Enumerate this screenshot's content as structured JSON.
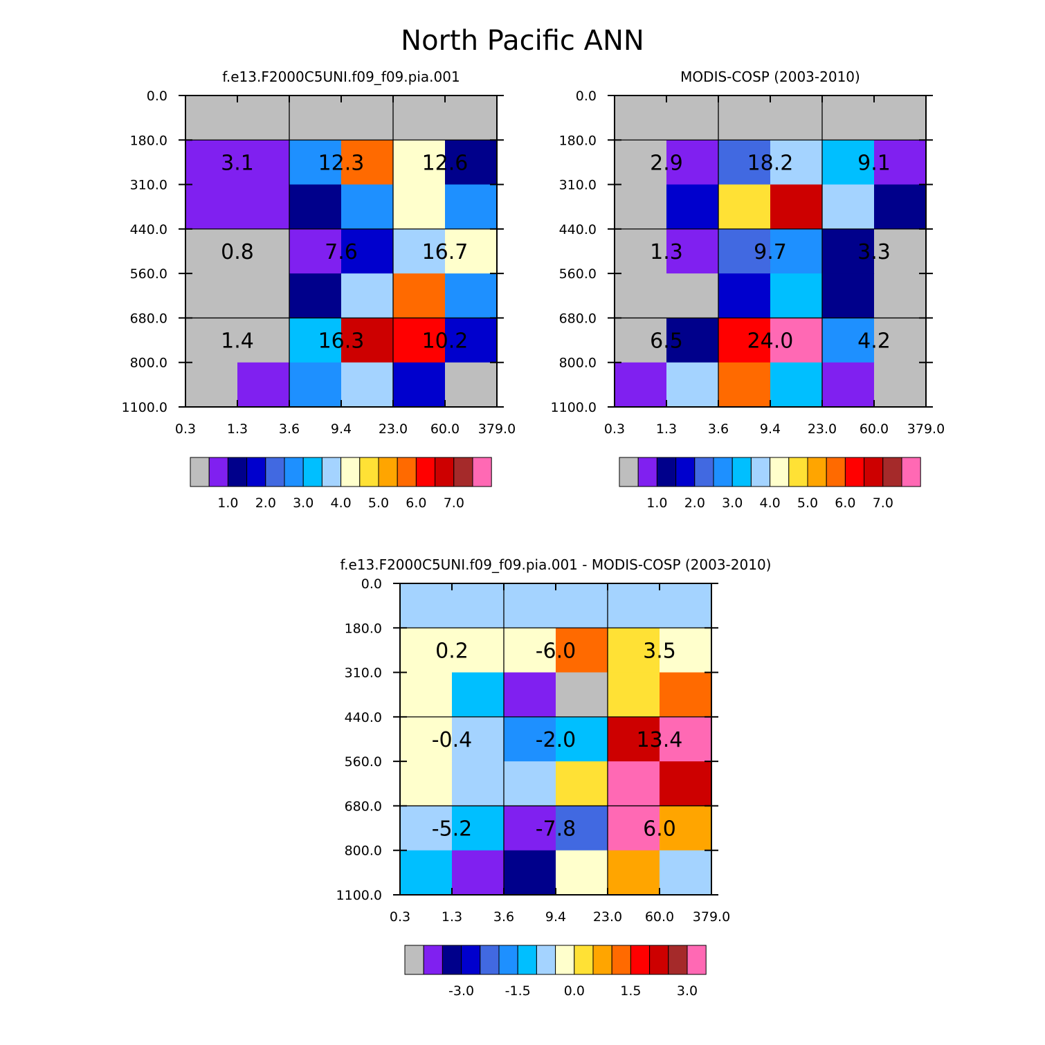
{
  "figure_title": "North Pacific ANN",
  "palette": [
    "#bebebe",
    "#8020f0",
    "#00008b",
    "#0000cd",
    "#4169e1",
    "#1e90ff",
    "#00bfff",
    "#a4d3ff",
    "#ffffcc",
    "#ffe135",
    "#ffa500",
    "#ff6a00",
    "#ff0000",
    "#cd0000",
    "#a52a2a",
    "#ff69b4"
  ],
  "chart_data": [
    {
      "type": "heatmap",
      "title": "f.e13.F2000C5UNI.f09_f09.pia.001",
      "x_tick_labels": [
        "0.3",
        "1.3",
        "3.6",
        "9.4",
        "23.0",
        "60.0",
        "379.0"
      ],
      "y_tick_labels": [
        "0.0",
        "180.0",
        "310.0",
        "440.0",
        "560.0",
        "680.0",
        "800.0",
        "1100.0"
      ],
      "cell_color_index": [
        [
          0,
          0,
          0,
          0,
          0,
          0
        ],
        [
          1,
          1,
          5,
          11,
          8,
          2
        ],
        [
          1,
          1,
          2,
          5,
          8,
          5
        ],
        [
          0,
          0,
          1,
          3,
          7,
          8
        ],
        [
          0,
          0,
          2,
          7,
          11,
          5
        ],
        [
          0,
          0,
          6,
          13,
          12,
          3
        ],
        [
          0,
          1,
          5,
          7,
          3,
          0
        ]
      ],
      "group_annotations": [
        [
          "3.1",
          "12.3",
          "12.6"
        ],
        [
          "0.8",
          "7.6",
          "16.7"
        ],
        [
          "1.4",
          "16.3",
          "10.2"
        ]
      ],
      "colorbar_labels": [
        "1.0",
        "2.0",
        "3.0",
        "4.0",
        "5.0",
        "6.0",
        "7.0"
      ]
    },
    {
      "type": "heatmap",
      "title": "MODIS-COSP (2003-2010)",
      "x_tick_labels": [
        "0.3",
        "1.3",
        "3.6",
        "9.4",
        "23.0",
        "60.0",
        "379.0"
      ],
      "y_tick_labels": [
        "0.0",
        "180.0",
        "310.0",
        "440.0",
        "560.0",
        "680.0",
        "800.0",
        "1100.0"
      ],
      "cell_color_index": [
        [
          0,
          0,
          0,
          0,
          0,
          0
        ],
        [
          0,
          1,
          4,
          7,
          6,
          1
        ],
        [
          0,
          3,
          9,
          13,
          7,
          2
        ],
        [
          0,
          1,
          4,
          5,
          2,
          0
        ],
        [
          0,
          0,
          3,
          6,
          2,
          0
        ],
        [
          0,
          2,
          12,
          15,
          5,
          0
        ],
        [
          1,
          7,
          11,
          6,
          1,
          0
        ]
      ],
      "group_annotations": [
        [
          "2.9",
          "18.2",
          "9.1"
        ],
        [
          "1.3",
          "9.7",
          "3.3"
        ],
        [
          "6.5",
          "24.0",
          "4.2"
        ]
      ],
      "colorbar_labels": [
        "1.0",
        "2.0",
        "3.0",
        "4.0",
        "5.0",
        "6.0",
        "7.0"
      ]
    },
    {
      "type": "heatmap",
      "title": "f.e13.F2000C5UNI.f09_f09.pia.001 - MODIS-COSP (2003-2010)",
      "x_tick_labels": [
        "0.3",
        "1.3",
        "3.6",
        "9.4",
        "23.0",
        "60.0",
        "379.0"
      ],
      "y_tick_labels": [
        "0.0",
        "180.0",
        "310.0",
        "440.0",
        "560.0",
        "680.0",
        "800.0",
        "1100.0"
      ],
      "cell_color_index": [
        [
          7,
          7,
          7,
          7,
          7,
          7
        ],
        [
          8,
          8,
          8,
          11,
          9,
          8
        ],
        [
          8,
          6,
          1,
          0,
          9,
          11
        ],
        [
          8,
          7,
          5,
          6,
          13,
          15
        ],
        [
          8,
          7,
          7,
          9,
          15,
          13
        ],
        [
          7,
          6,
          1,
          4,
          15,
          10
        ],
        [
          6,
          1,
          2,
          8,
          10,
          7
        ]
      ],
      "group_annotations": [
        [
          "0.2",
          "-6.0",
          "3.5"
        ],
        [
          "-0.4",
          "-2.0",
          "13.4"
        ],
        [
          "-5.2",
          "-7.8",
          "6.0"
        ]
      ],
      "colorbar_labels": [
        "-3.0",
        "-1.5",
        "0.0",
        "1.5",
        "3.0"
      ]
    }
  ]
}
